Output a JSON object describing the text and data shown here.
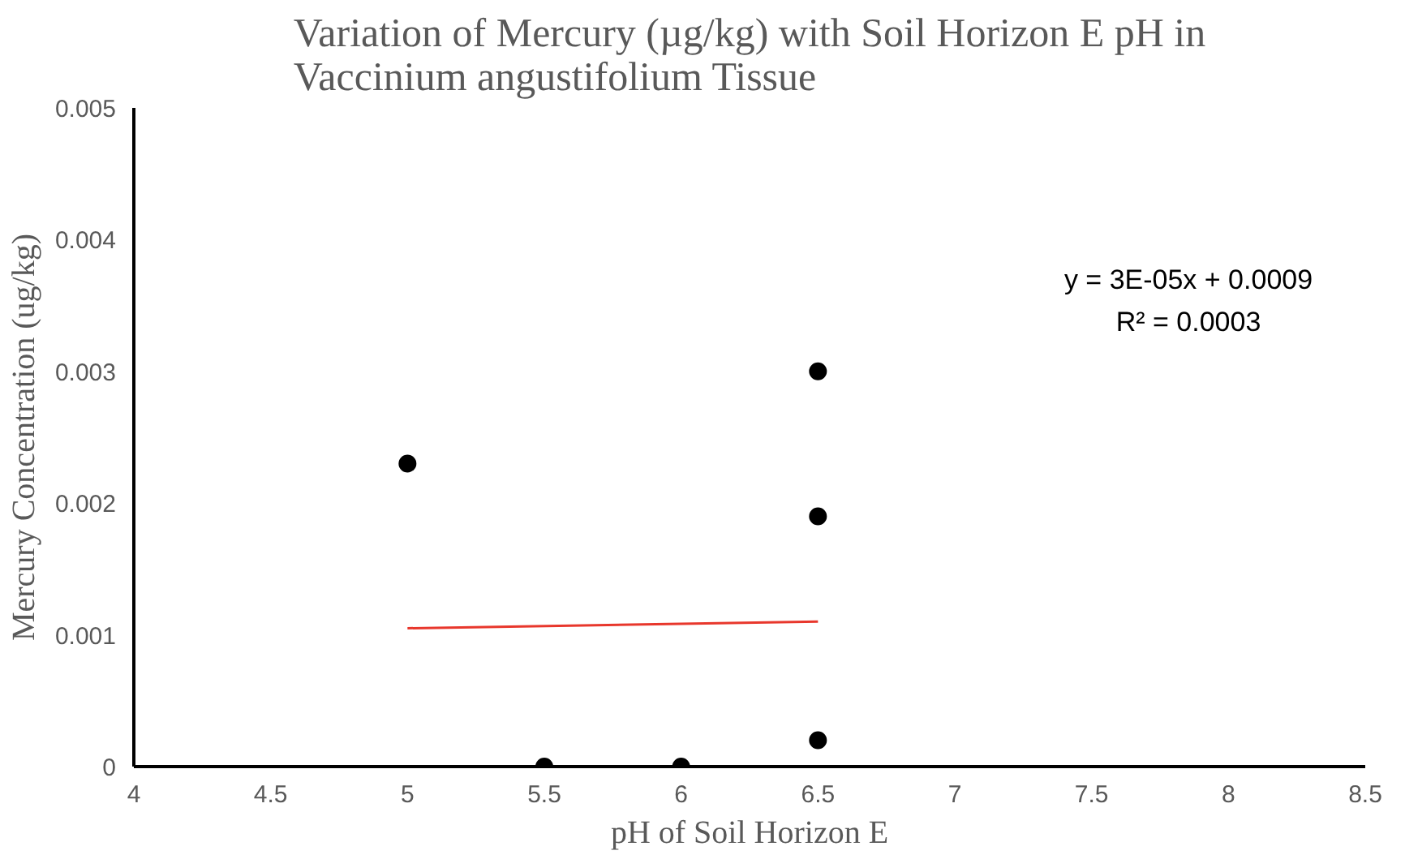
{
  "chart_data": {
    "type": "scatter",
    "title": "Variation of Mercury (µg/kg) with Soil Horizon E pH in Vaccinium angustifolium Tissue",
    "xlabel": "pH of Soil Horizon E",
    "ylabel": "Mercury Concentration (ug/kg)",
    "series": [
      {
        "color": "#000000",
        "marker": "circle",
        "x": [
          5,
          5.5,
          6,
          6.5,
          6.5,
          6.5
        ],
        "values": [
          0.0023,
          0,
          0,
          0.003,
          0.0019,
          0.0002
        ]
      },
      {
        "type": "line",
        "color": "#e8372c",
        "x": [
          5,
          6.5
        ],
        "values": [
          0.00105,
          0.0011
        ]
      }
    ],
    "annotations": [
      "y = 3E-05x + 0.0009",
      "R² = 0.0003"
    ],
    "xlim": [
      4,
      8.5
    ],
    "xticks": [
      4,
      4.5,
      5,
      5.5,
      6,
      6.5,
      7,
      7.5,
      8,
      8.5
    ],
    "ylim": [
      0,
      0.005
    ],
    "yticks": [
      0,
      0.001,
      0.002,
      0.003,
      0.004,
      0.005
    ],
    "grid": false
  }
}
